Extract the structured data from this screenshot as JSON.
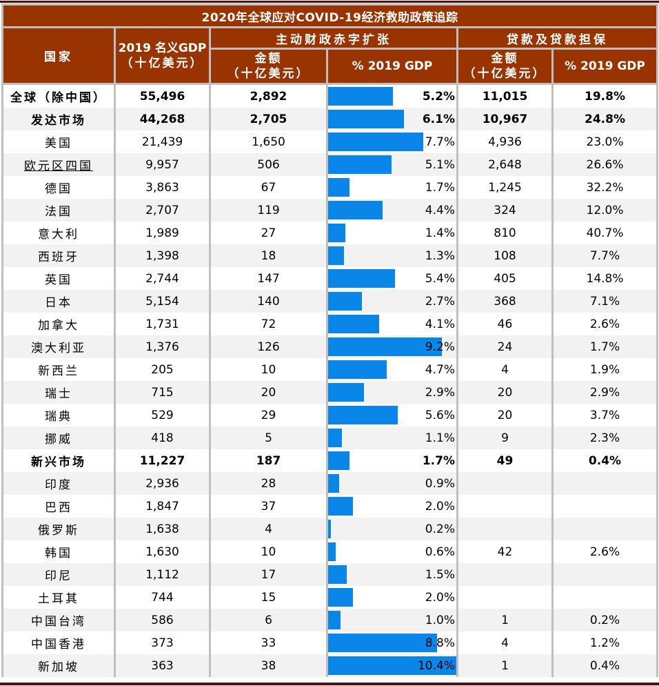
{
  "title": "2020年全球应对COVID-19经济救助政策追踪",
  "headers": {
    "country": "国家",
    "gdp_line1": "2019 名义GDP",
    "gdp_line2": "（十亿美元）",
    "fiscal_group": "主动财政赤字扩张",
    "loans_group": "贷款及贷款担保",
    "amount_line1": "金额",
    "amount_line2": "（十亿美元）",
    "pct_gdp": "% 2019 GDP"
  },
  "colors": {
    "header_bg": "#993300",
    "bar": "#0a86e8",
    "border": "#bfbfbf",
    "rule": "#5c0a0a",
    "alt_row": "#f2f2f2"
  },
  "rows": [
    {
      "country": "全球（除中国）",
      "gdp": "55,496",
      "fiscal_amt": "2,892",
      "fiscal_pct": "5.2%",
      "loan_amt": "11,015",
      "loan_pct": "19.8%"
    },
    {
      "country": "发达市场",
      "gdp": "44,268",
      "fiscal_amt": "2,705",
      "fiscal_pct": "6.1%",
      "loan_amt": "10,967",
      "loan_pct": "24.8%"
    },
    {
      "country": "美国",
      "gdp": "21,439",
      "fiscal_amt": "1,650",
      "fiscal_pct": "7.7%",
      "loan_amt": "4,936",
      "loan_pct": "23.0%"
    },
    {
      "country": "欧元区四国",
      "gdp": "9,957",
      "fiscal_amt": "506",
      "fiscal_pct": "5.1%",
      "loan_amt": "2,648",
      "loan_pct": "26.6%"
    },
    {
      "country": "德国",
      "gdp": "3,863",
      "fiscal_amt": "67",
      "fiscal_pct": "1.7%",
      "loan_amt": "1,245",
      "loan_pct": "32.2%"
    },
    {
      "country": "法国",
      "gdp": "2,707",
      "fiscal_amt": "119",
      "fiscal_pct": "4.4%",
      "loan_amt": "324",
      "loan_pct": "12.0%"
    },
    {
      "country": "意大利",
      "gdp": "1,989",
      "fiscal_amt": "27",
      "fiscal_pct": "1.4%",
      "loan_amt": "810",
      "loan_pct": "40.7%"
    },
    {
      "country": "西班牙",
      "gdp": "1,398",
      "fiscal_amt": "18",
      "fiscal_pct": "1.3%",
      "loan_amt": "108",
      "loan_pct": "7.7%"
    },
    {
      "country": "英国",
      "gdp": "2,744",
      "fiscal_amt": "147",
      "fiscal_pct": "5.4%",
      "loan_amt": "405",
      "loan_pct": "14.8%"
    },
    {
      "country": "日本",
      "gdp": "5,154",
      "fiscal_amt": "140",
      "fiscal_pct": "2.7%",
      "loan_amt": "368",
      "loan_pct": "7.1%"
    },
    {
      "country": "加拿大",
      "gdp": "1,731",
      "fiscal_amt": "72",
      "fiscal_pct": "4.1%",
      "loan_amt": "46",
      "loan_pct": "2.6%"
    },
    {
      "country": "澳大利亚",
      "gdp": "1,376",
      "fiscal_amt": "126",
      "fiscal_pct": "9.2%",
      "loan_amt": "24",
      "loan_pct": "1.7%"
    },
    {
      "country": "新西兰",
      "gdp": "205",
      "fiscal_amt": "10",
      "fiscal_pct": "4.7%",
      "loan_amt": "4",
      "loan_pct": "1.9%"
    },
    {
      "country": "瑞士",
      "gdp": "715",
      "fiscal_amt": "20",
      "fiscal_pct": "2.9%",
      "loan_amt": "20",
      "loan_pct": "2.9%"
    },
    {
      "country": "瑞典",
      "gdp": "529",
      "fiscal_amt": "29",
      "fiscal_pct": "5.6%",
      "loan_amt": "20",
      "loan_pct": "3.7%"
    },
    {
      "country": "挪威",
      "gdp": "418",
      "fiscal_amt": "5",
      "fiscal_pct": "1.1%",
      "loan_amt": "9",
      "loan_pct": "2.3%"
    },
    {
      "country": "新兴市场",
      "gdp": "11,227",
      "fiscal_amt": "187",
      "fiscal_pct": "1.7%",
      "loan_amt": "49",
      "loan_pct": "0.4%"
    },
    {
      "country": "印度",
      "gdp": "2,936",
      "fiscal_amt": "28",
      "fiscal_pct": "0.9%",
      "loan_amt": "",
      "loan_pct": ""
    },
    {
      "country": "巴西",
      "gdp": "1,847",
      "fiscal_amt": "37",
      "fiscal_pct": "2.0%",
      "loan_amt": "",
      "loan_pct": ""
    },
    {
      "country": "俄罗斯",
      "gdp": "1,638",
      "fiscal_amt": "4",
      "fiscal_pct": "0.2%",
      "loan_amt": "",
      "loan_pct": ""
    },
    {
      "country": "韩国",
      "gdp": "1,630",
      "fiscal_amt": "10",
      "fiscal_pct": "0.6%",
      "loan_amt": "42",
      "loan_pct": "2.6%"
    },
    {
      "country": "印尼",
      "gdp": "1,112",
      "fiscal_amt": "17",
      "fiscal_pct": "1.5%",
      "loan_amt": "",
      "loan_pct": ""
    },
    {
      "country": "土耳其",
      "gdp": "744",
      "fiscal_amt": "15",
      "fiscal_pct": "2.0%",
      "loan_amt": "",
      "loan_pct": ""
    },
    {
      "country": "中国台湾",
      "gdp": "586",
      "fiscal_amt": "6",
      "fiscal_pct": "1.0%",
      "loan_amt": "1",
      "loan_pct": "0.2%"
    },
    {
      "country": "中国香港",
      "gdp": "373",
      "fiscal_amt": "33",
      "fiscal_pct": "8.8%",
      "loan_amt": "4",
      "loan_pct": "1.2%"
    },
    {
      "country": "新加坡",
      "gdp": "363",
      "fiscal_amt": "38",
      "fiscal_pct": "10.4%",
      "loan_amt": "1",
      "loan_pct": "0.4%"
    }
  ],
  "chart_data": {
    "type": "table",
    "title": "2020年全球应对COVID-19经济救助政策追踪",
    "columns": [
      "国家",
      "2019 名义GDP（十亿美元）",
      "主动财政赤字扩张 金额（十亿美元）",
      "主动财政赤字扩张 % 2019 GDP",
      "贷款及贷款担保 金额（十亿美元）",
      "贷款及贷款担保 % 2019 GDP"
    ],
    "categories": [
      "全球（除中国）",
      "发达市场",
      "美国",
      "欧元区四国",
      "德国",
      "法国",
      "意大利",
      "西班牙",
      "英国",
      "日本",
      "加拿大",
      "澳大利亚",
      "新西兰",
      "瑞士",
      "瑞典",
      "挪威",
      "新兴市场",
      "印度",
      "巴西",
      "俄罗斯",
      "韩国",
      "印尼",
      "土耳其",
      "中国台湾",
      "中国香港",
      "新加坡"
    ],
    "series": [
      {
        "name": "2019 名义GDP（十亿美元）",
        "values": [
          55496,
          44268,
          21439,
          9957,
          3863,
          2707,
          1989,
          1398,
          2744,
          5154,
          1731,
          1376,
          205,
          715,
          529,
          418,
          11227,
          2936,
          1847,
          1638,
          1630,
          1112,
          744,
          586,
          373,
          363
        ]
      },
      {
        "name": "主动财政赤字扩张 金额（十亿美元）",
        "values": [
          2892,
          2705,
          1650,
          506,
          67,
          119,
          27,
          18,
          147,
          140,
          72,
          126,
          10,
          20,
          29,
          5,
          187,
          28,
          37,
          4,
          10,
          17,
          15,
          6,
          33,
          38
        ]
      },
      {
        "name": "主动财政赤字扩张 % 2019 GDP",
        "values": [
          5.2,
          6.1,
          7.7,
          5.1,
          1.7,
          4.4,
          1.4,
          1.3,
          5.4,
          2.7,
          4.1,
          9.2,
          4.7,
          2.9,
          5.6,
          1.1,
          1.7,
          0.9,
          2.0,
          0.2,
          0.6,
          1.5,
          2.0,
          1.0,
          8.8,
          10.4
        ],
        "display": "data bars"
      },
      {
        "name": "贷款及贷款担保 金额（十亿美元）",
        "values": [
          11015,
          10967,
          4936,
          2648,
          1245,
          324,
          810,
          108,
          405,
          368,
          46,
          24,
          4,
          20,
          20,
          9,
          49,
          null,
          null,
          null,
          42,
          null,
          null,
          1,
          4,
          1
        ]
      },
      {
        "name": "贷款及贷款担保 % 2019 GDP",
        "values": [
          19.8,
          24.8,
          23.0,
          26.6,
          32.2,
          12.0,
          40.7,
          7.7,
          14.8,
          7.1,
          2.6,
          1.7,
          1.9,
          2.9,
          3.7,
          2.3,
          0.4,
          null,
          null,
          null,
          2.6,
          null,
          null,
          0.2,
          1.2,
          0.4
        ]
      }
    ],
    "bar_scale_max": 10.4
  }
}
